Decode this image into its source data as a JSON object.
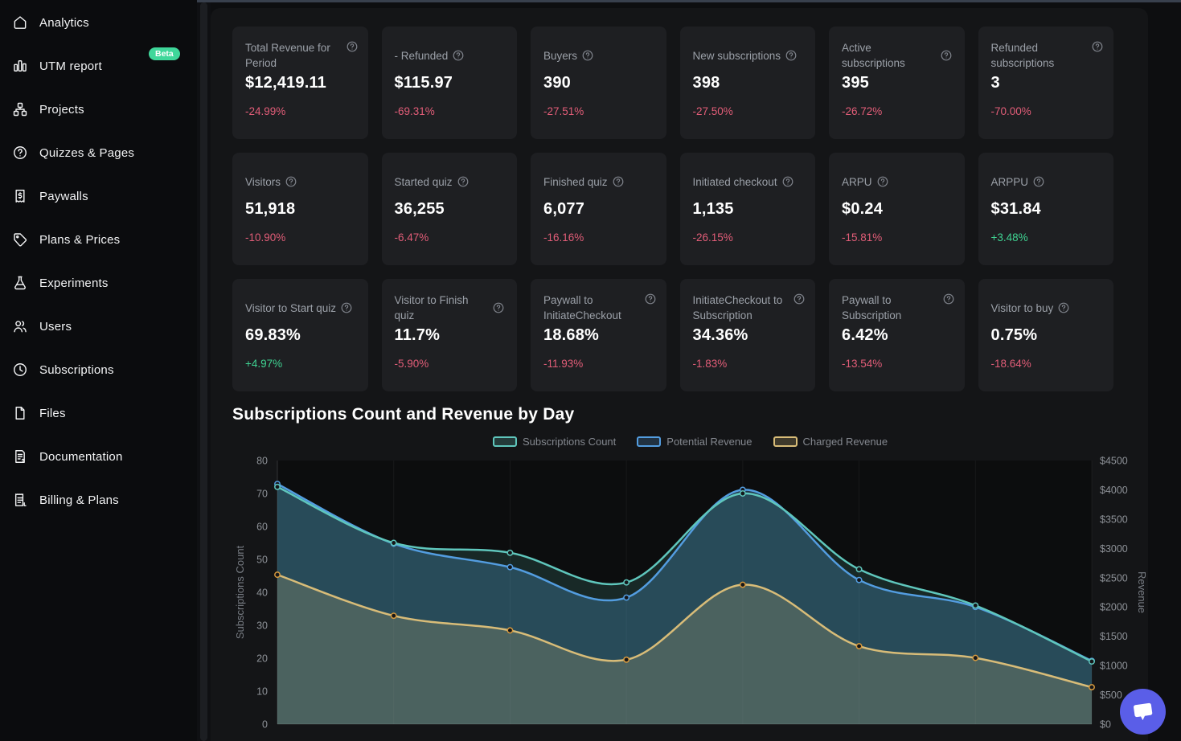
{
  "colors": {
    "accent_green": "#3fd79a",
    "positive": "#3fd392",
    "negative": "#e25d78",
    "teal": "#5fc6bc",
    "blue": "#539de0",
    "gold": "#d8bc78",
    "gold_marker": "#d89a3e",
    "chat_fab": "#5a5ee8"
  },
  "sidebar": {
    "items": [
      {
        "label": "Analytics",
        "icon": "home-icon"
      },
      {
        "label": "UTM report",
        "icon": "bar-chart-icon",
        "badge": "Beta"
      },
      {
        "label": "Projects",
        "icon": "sitemap-icon"
      },
      {
        "label": "Quizzes & Pages",
        "icon": "help-circle-icon"
      },
      {
        "label": "Paywalls",
        "icon": "receipt-dollar-icon"
      },
      {
        "label": "Plans & Prices",
        "icon": "tag-icon"
      },
      {
        "label": "Experiments",
        "icon": "flask-icon"
      },
      {
        "label": "Users",
        "icon": "users-icon"
      },
      {
        "label": "Subscriptions",
        "icon": "clock-icon"
      },
      {
        "label": "Files",
        "icon": "file-icon"
      },
      {
        "label": "Documentation",
        "icon": "document-question-icon"
      },
      {
        "label": "Billing & Plans",
        "icon": "invoice-icon"
      }
    ]
  },
  "cards": [
    {
      "title": "Total Revenue for Period",
      "value": "$12,419.11",
      "delta": "-24.99%",
      "corner_icon": true
    },
    {
      "title": "- Refunded",
      "value": "$115.97",
      "delta": "-69.31%"
    },
    {
      "title": "Buyers",
      "value": "390",
      "delta": "-27.51%"
    },
    {
      "title": "New subscriptions",
      "value": "398",
      "delta": "-27.50%"
    },
    {
      "title": "Active subscriptions",
      "value": "395",
      "delta": "-26.72%"
    },
    {
      "title": "Refunded subscriptions",
      "value": "3",
      "delta": "-70.00%",
      "corner_icon": true
    },
    {
      "title": "Visitors",
      "value": "51,918",
      "delta": "-10.90%"
    },
    {
      "title": "Started quiz",
      "value": "36,255",
      "delta": "-6.47%"
    },
    {
      "title": "Finished quiz",
      "value": "6,077",
      "delta": "-16.16%"
    },
    {
      "title": "Initiated checkout",
      "value": "1,135",
      "delta": "-26.15%"
    },
    {
      "title": "ARPU",
      "value": "$0.24",
      "delta": "-15.81%"
    },
    {
      "title": "ARPPU",
      "value": "$31.84",
      "delta": "+3.48%"
    },
    {
      "title": "Visitor to Start quiz",
      "value": "69.83%",
      "delta": "+4.97%"
    },
    {
      "title": "Visitor to Finish quiz",
      "value": "11.7%",
      "delta": "-5.90%"
    },
    {
      "title": "Paywall to InitiateCheckout",
      "value": "18.68%",
      "delta": "-11.93%",
      "corner_icon": true
    },
    {
      "title": "InitiateCheckout to Subscription",
      "value": "34.36%",
      "delta": "-1.83%",
      "corner_icon": true
    },
    {
      "title": "Paywall to Subscription",
      "value": "6.42%",
      "delta": "-13.54%",
      "corner_icon": true
    },
    {
      "title": "Visitor to buy",
      "value": "0.75%",
      "delta": "-18.64%"
    }
  ],
  "chart_data": {
    "type": "area",
    "title": "Subscriptions Count and Revenue by Day",
    "x": [
      1,
      2,
      3,
      4,
      5,
      6,
      7,
      8
    ],
    "x_axis_labels_visible": false,
    "grid": "vertical-faint",
    "legend_position": "top-center",
    "left_axis": {
      "label": "Subscriptions Count",
      "min": 0,
      "max": 80,
      "ticks": [
        0,
        10,
        20,
        30,
        40,
        50,
        60,
        70,
        80
      ]
    },
    "right_axis": {
      "label": "Revenue",
      "min": 0,
      "max": 4500,
      "tick_labels": [
        "$0",
        "$500",
        "$1000",
        "$1500",
        "$2000",
        "$2500",
        "$3000",
        "$3500",
        "$4000",
        "$4500"
      ]
    },
    "series": [
      {
        "name": "Subscriptions Count",
        "axis": "left",
        "color": "#5fc6bc",
        "values": [
          72,
          55,
          52,
          43,
          70,
          47,
          36,
          19
        ]
      },
      {
        "name": "Potential Revenue",
        "axis": "right",
        "color": "#539de0",
        "values": [
          4100,
          3080,
          2680,
          2160,
          4000,
          2460,
          2000,
          1080
        ]
      },
      {
        "name": "Charged Revenue",
        "axis": "right",
        "color": "#d8bc78",
        "values": [
          2550,
          1850,
          1600,
          1100,
          2380,
          1330,
          1130,
          630
        ]
      }
    ]
  }
}
